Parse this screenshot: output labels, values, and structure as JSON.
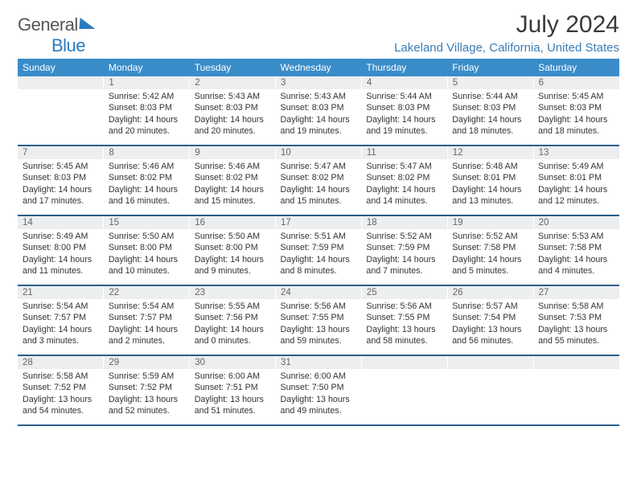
{
  "brand": {
    "word1": "General",
    "word2": "Blue"
  },
  "title": "July 2024",
  "location": "Lakeland Village, California, United States",
  "colors": {
    "header_bg": "#3a8cc9",
    "header_text": "#ffffff",
    "daynum_bg": "#eceeef",
    "daynum_text": "#666666",
    "cell_text": "#333333",
    "divider": "#2b5f8a",
    "location_text": "#3a7db5",
    "brand_blue": "#2b7bbf"
  },
  "font": {
    "family": "Arial",
    "header_size_pt": 9,
    "cell_size_pt": 8,
    "title_size_pt": 22,
    "location_size_pt": 11
  },
  "layout": {
    "columns": 7,
    "rows": 5,
    "first_day_column_index": 1
  },
  "day_names": [
    "Sunday",
    "Monday",
    "Tuesday",
    "Wednesday",
    "Thursday",
    "Friday",
    "Saturday"
  ],
  "weeks": [
    [
      {
        "num": "",
        "sunrise": "",
        "sunset": "",
        "daylight1": "",
        "daylight2": ""
      },
      {
        "num": "1",
        "sunrise": "Sunrise: 5:42 AM",
        "sunset": "Sunset: 8:03 PM",
        "daylight1": "Daylight: 14 hours",
        "daylight2": "and 20 minutes."
      },
      {
        "num": "2",
        "sunrise": "Sunrise: 5:43 AM",
        "sunset": "Sunset: 8:03 PM",
        "daylight1": "Daylight: 14 hours",
        "daylight2": "and 20 minutes."
      },
      {
        "num": "3",
        "sunrise": "Sunrise: 5:43 AM",
        "sunset": "Sunset: 8:03 PM",
        "daylight1": "Daylight: 14 hours",
        "daylight2": "and 19 minutes."
      },
      {
        "num": "4",
        "sunrise": "Sunrise: 5:44 AM",
        "sunset": "Sunset: 8:03 PM",
        "daylight1": "Daylight: 14 hours",
        "daylight2": "and 19 minutes."
      },
      {
        "num": "5",
        "sunrise": "Sunrise: 5:44 AM",
        "sunset": "Sunset: 8:03 PM",
        "daylight1": "Daylight: 14 hours",
        "daylight2": "and 18 minutes."
      },
      {
        "num": "6",
        "sunrise": "Sunrise: 5:45 AM",
        "sunset": "Sunset: 8:03 PM",
        "daylight1": "Daylight: 14 hours",
        "daylight2": "and 18 minutes."
      }
    ],
    [
      {
        "num": "7",
        "sunrise": "Sunrise: 5:45 AM",
        "sunset": "Sunset: 8:03 PM",
        "daylight1": "Daylight: 14 hours",
        "daylight2": "and 17 minutes."
      },
      {
        "num": "8",
        "sunrise": "Sunrise: 5:46 AM",
        "sunset": "Sunset: 8:02 PM",
        "daylight1": "Daylight: 14 hours",
        "daylight2": "and 16 minutes."
      },
      {
        "num": "9",
        "sunrise": "Sunrise: 5:46 AM",
        "sunset": "Sunset: 8:02 PM",
        "daylight1": "Daylight: 14 hours",
        "daylight2": "and 15 minutes."
      },
      {
        "num": "10",
        "sunrise": "Sunrise: 5:47 AM",
        "sunset": "Sunset: 8:02 PM",
        "daylight1": "Daylight: 14 hours",
        "daylight2": "and 15 minutes."
      },
      {
        "num": "11",
        "sunrise": "Sunrise: 5:47 AM",
        "sunset": "Sunset: 8:02 PM",
        "daylight1": "Daylight: 14 hours",
        "daylight2": "and 14 minutes."
      },
      {
        "num": "12",
        "sunrise": "Sunrise: 5:48 AM",
        "sunset": "Sunset: 8:01 PM",
        "daylight1": "Daylight: 14 hours",
        "daylight2": "and 13 minutes."
      },
      {
        "num": "13",
        "sunrise": "Sunrise: 5:49 AM",
        "sunset": "Sunset: 8:01 PM",
        "daylight1": "Daylight: 14 hours",
        "daylight2": "and 12 minutes."
      }
    ],
    [
      {
        "num": "14",
        "sunrise": "Sunrise: 5:49 AM",
        "sunset": "Sunset: 8:00 PM",
        "daylight1": "Daylight: 14 hours",
        "daylight2": "and 11 minutes."
      },
      {
        "num": "15",
        "sunrise": "Sunrise: 5:50 AM",
        "sunset": "Sunset: 8:00 PM",
        "daylight1": "Daylight: 14 hours",
        "daylight2": "and 10 minutes."
      },
      {
        "num": "16",
        "sunrise": "Sunrise: 5:50 AM",
        "sunset": "Sunset: 8:00 PM",
        "daylight1": "Daylight: 14 hours",
        "daylight2": "and 9 minutes."
      },
      {
        "num": "17",
        "sunrise": "Sunrise: 5:51 AM",
        "sunset": "Sunset: 7:59 PM",
        "daylight1": "Daylight: 14 hours",
        "daylight2": "and 8 minutes."
      },
      {
        "num": "18",
        "sunrise": "Sunrise: 5:52 AM",
        "sunset": "Sunset: 7:59 PM",
        "daylight1": "Daylight: 14 hours",
        "daylight2": "and 7 minutes."
      },
      {
        "num": "19",
        "sunrise": "Sunrise: 5:52 AM",
        "sunset": "Sunset: 7:58 PM",
        "daylight1": "Daylight: 14 hours",
        "daylight2": "and 5 minutes."
      },
      {
        "num": "20",
        "sunrise": "Sunrise: 5:53 AM",
        "sunset": "Sunset: 7:58 PM",
        "daylight1": "Daylight: 14 hours",
        "daylight2": "and 4 minutes."
      }
    ],
    [
      {
        "num": "21",
        "sunrise": "Sunrise: 5:54 AM",
        "sunset": "Sunset: 7:57 PM",
        "daylight1": "Daylight: 14 hours",
        "daylight2": "and 3 minutes."
      },
      {
        "num": "22",
        "sunrise": "Sunrise: 5:54 AM",
        "sunset": "Sunset: 7:57 PM",
        "daylight1": "Daylight: 14 hours",
        "daylight2": "and 2 minutes."
      },
      {
        "num": "23",
        "sunrise": "Sunrise: 5:55 AM",
        "sunset": "Sunset: 7:56 PM",
        "daylight1": "Daylight: 14 hours",
        "daylight2": "and 0 minutes."
      },
      {
        "num": "24",
        "sunrise": "Sunrise: 5:56 AM",
        "sunset": "Sunset: 7:55 PM",
        "daylight1": "Daylight: 13 hours",
        "daylight2": "and 59 minutes."
      },
      {
        "num": "25",
        "sunrise": "Sunrise: 5:56 AM",
        "sunset": "Sunset: 7:55 PM",
        "daylight1": "Daylight: 13 hours",
        "daylight2": "and 58 minutes."
      },
      {
        "num": "26",
        "sunrise": "Sunrise: 5:57 AM",
        "sunset": "Sunset: 7:54 PM",
        "daylight1": "Daylight: 13 hours",
        "daylight2": "and 56 minutes."
      },
      {
        "num": "27",
        "sunrise": "Sunrise: 5:58 AM",
        "sunset": "Sunset: 7:53 PM",
        "daylight1": "Daylight: 13 hours",
        "daylight2": "and 55 minutes."
      }
    ],
    [
      {
        "num": "28",
        "sunrise": "Sunrise: 5:58 AM",
        "sunset": "Sunset: 7:52 PM",
        "daylight1": "Daylight: 13 hours",
        "daylight2": "and 54 minutes."
      },
      {
        "num": "29",
        "sunrise": "Sunrise: 5:59 AM",
        "sunset": "Sunset: 7:52 PM",
        "daylight1": "Daylight: 13 hours",
        "daylight2": "and 52 minutes."
      },
      {
        "num": "30",
        "sunrise": "Sunrise: 6:00 AM",
        "sunset": "Sunset: 7:51 PM",
        "daylight1": "Daylight: 13 hours",
        "daylight2": "and 51 minutes."
      },
      {
        "num": "31",
        "sunrise": "Sunrise: 6:00 AM",
        "sunset": "Sunset: 7:50 PM",
        "daylight1": "Daylight: 13 hours",
        "daylight2": "and 49 minutes."
      },
      {
        "num": "",
        "sunrise": "",
        "sunset": "",
        "daylight1": "",
        "daylight2": ""
      },
      {
        "num": "",
        "sunrise": "",
        "sunset": "",
        "daylight1": "",
        "daylight2": ""
      },
      {
        "num": "",
        "sunrise": "",
        "sunset": "",
        "daylight1": "",
        "daylight2": ""
      }
    ]
  ]
}
